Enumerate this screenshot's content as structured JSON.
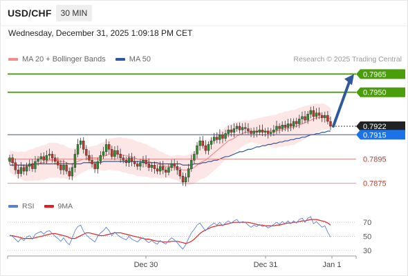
{
  "header": {
    "symbol": "USD/CHF",
    "timeframe": "30 MIN"
  },
  "datetime": "Wednesday, December 31, 2025 1:09:18 PM CET",
  "legend": [
    {
      "label": "MA 20 + Bollinger Bands",
      "color": "#f28b8b"
    },
    {
      "label": "MA 50",
      "color": "#2e5a9c"
    }
  ],
  "credit": "Research © 2025 Trading Central",
  "rsi_legend": [
    {
      "label": "RSI",
      "color": "#5b7fd6"
    },
    {
      "label": "9MA",
      "color": "#e02020"
    }
  ],
  "colors": {
    "up": "#2e8b2e",
    "down": "#c0392b",
    "resistance": "#4a9e0a",
    "support": "#f28b8b",
    "pivot": "#2e5a9c",
    "last": "#222222",
    "band": "#fde2e2",
    "arrow": "#2e5a9c"
  },
  "chart_data": [
    {
      "type": "candlestick",
      "x_ticks": [
        "Dec 30",
        "Dec 31",
        "Jan 1"
      ],
      "ylim": [
        0.7864,
        0.7972
      ],
      "levels": [
        {
          "value": 0.7965,
          "label": "0.7965",
          "kind": "resistance"
        },
        {
          "value": 0.795,
          "label": "0.7950",
          "kind": "resistance"
        },
        {
          "value": 0.7922,
          "label": "0.7922",
          "kind": "last"
        },
        {
          "value": 0.7915,
          "label": "0.7915",
          "kind": "pivot"
        },
        {
          "value": 0.7895,
          "label": "0.7895",
          "kind": "support"
        },
        {
          "value": 0.7875,
          "label": "0.7875",
          "kind": "support"
        }
      ],
      "candles_close": [
        0.7896,
        0.7892,
        0.7886,
        0.7883,
        0.7888,
        0.7885,
        0.7889,
        0.7891,
        0.7887,
        0.7893,
        0.7895,
        0.7897,
        0.7894,
        0.7898,
        0.7899,
        0.7896,
        0.7893,
        0.789,
        0.7886,
        0.789,
        0.7885,
        0.7881,
        0.7888,
        0.7899,
        0.7907,
        0.791,
        0.7903,
        0.7898,
        0.7894,
        0.7891,
        0.7887,
        0.7893,
        0.7898,
        0.7901,
        0.7907,
        0.7903,
        0.7897,
        0.7902,
        0.7899,
        0.7896,
        0.7894,
        0.7892,
        0.7896,
        0.7893,
        0.7891,
        0.7889,
        0.7892,
        0.7894,
        0.7891,
        0.7888,
        0.789,
        0.7887,
        0.7885,
        0.7889,
        0.7886,
        0.7884,
        0.7888,
        0.7891,
        0.7889,
        0.7886,
        0.7881,
        0.7876,
        0.788,
        0.7887,
        0.7894,
        0.7899,
        0.7906,
        0.791,
        0.7906,
        0.7902,
        0.7907,
        0.791,
        0.7913,
        0.7911,
        0.7915,
        0.7912,
        0.7916,
        0.7919,
        0.7917,
        0.792,
        0.7922,
        0.7919,
        0.7921,
        0.792,
        0.7918,
        0.7916,
        0.7918,
        0.7917,
        0.7919,
        0.7917,
        0.7918,
        0.7916,
        0.7917,
        0.7919,
        0.7922,
        0.792,
        0.7923,
        0.7921,
        0.7924,
        0.7922,
        0.7926,
        0.7924,
        0.7928,
        0.793,
        0.7927,
        0.7932,
        0.7935,
        0.793,
        0.7933,
        0.7931,
        0.7929,
        0.7931,
        0.7926,
        0.7922
      ],
      "ma20": [
        0.7893,
        0.7892,
        0.7891,
        0.789,
        0.789,
        0.7889,
        0.7889,
        0.789,
        0.789,
        0.7891,
        0.7891,
        0.7892,
        0.7892,
        0.7893,
        0.7894,
        0.7894,
        0.7894,
        0.7894,
        0.7893,
        0.7893,
        0.7892,
        0.7891,
        0.7891,
        0.7892,
        0.7893,
        0.7894,
        0.7895,
        0.7895,
        0.7896,
        0.7896,
        0.7896,
        0.7896,
        0.7897,
        0.7897,
        0.7898,
        0.7899,
        0.7899,
        0.7899,
        0.7899,
        0.7899,
        0.7898,
        0.7898,
        0.7897,
        0.7897,
        0.7896,
        0.7895,
        0.7895,
        0.7894,
        0.7894,
        0.7893,
        0.7892,
        0.7892,
        0.7891,
        0.789,
        0.789,
        0.7889,
        0.7889,
        0.7888,
        0.7888,
        0.7888,
        0.7887,
        0.7886,
        0.7886,
        0.7886,
        0.7887,
        0.7888,
        0.789,
        0.7892,
        0.7893,
        0.7894,
        0.7896,
        0.7898,
        0.79,
        0.7902,
        0.7904,
        0.7906,
        0.7908,
        0.791,
        0.7911,
        0.7912,
        0.7914,
        0.7915,
        0.7916,
        0.7917,
        0.7917,
        0.7918,
        0.7918,
        0.7918,
        0.7918,
        0.7918,
        0.7918,
        0.7918,
        0.7918,
        0.7918,
        0.7918,
        0.7919,
        0.7919,
        0.792,
        0.792,
        0.7921,
        0.7921,
        0.7922,
        0.7923,
        0.7924,
        0.7925,
        0.7926,
        0.7927,
        0.7928,
        0.7929,
        0.7929,
        0.793,
        0.793,
        0.7929,
        0.7928
      ],
      "bb_width": 0.0009,
      "ma50": [
        0.789,
        0.789,
        0.789,
        0.789,
        0.789,
        0.789,
        0.789,
        0.789,
        0.7891,
        0.7891,
        0.7891,
        0.7891,
        0.7891,
        0.7891,
        0.7891,
        0.7891,
        0.7891,
        0.7891,
        0.7891,
        0.7891,
        0.7891,
        0.7891,
        0.7891,
        0.7891,
        0.7891,
        0.7891,
        0.7892,
        0.7892,
        0.7892,
        0.7892,
        0.7892,
        0.7892,
        0.7892,
        0.7893,
        0.7893,
        0.7893,
        0.7893,
        0.7893,
        0.7893,
        0.7893,
        0.7893,
        0.7893,
        0.7893,
        0.7893,
        0.7893,
        0.7893,
        0.7893,
        0.7892,
        0.7892,
        0.7892,
        0.7892,
        0.7892,
        0.7892,
        0.7891,
        0.7891,
        0.7891,
        0.7891,
        0.7891,
        0.7891,
        0.7891,
        0.7891,
        0.789,
        0.789,
        0.789,
        0.789,
        0.7891,
        0.7891,
        0.7891,
        0.7892,
        0.7892,
        0.7893,
        0.7893,
        0.7894,
        0.7894,
        0.7895,
        0.7896,
        0.7897,
        0.7897,
        0.7898,
        0.7899,
        0.79,
        0.7901,
        0.7901,
        0.7902,
        0.7903,
        0.7903,
        0.7904,
        0.7905,
        0.7905,
        0.7906,
        0.7906,
        0.7907,
        0.7907,
        0.7908,
        0.7908,
        0.7909,
        0.7909,
        0.791,
        0.791,
        0.7911,
        0.7911,
        0.7912,
        0.7912,
        0.7913,
        0.7913,
        0.7914,
        0.7915,
        0.7915,
        0.7916,
        0.7916,
        0.7917,
        0.7917,
        0.7918,
        0.7918
      ],
      "forecast_arrow": {
        "from": 0.7922,
        "to": 0.7965
      }
    },
    {
      "type": "line",
      "ylim": [
        25,
        80
      ],
      "y_ticks": [
        70,
        50,
        30
      ],
      "rsi": [
        52,
        50,
        46,
        42,
        47,
        44,
        49,
        51,
        46,
        53,
        55,
        57,
        53,
        57,
        58,
        54,
        50,
        47,
        43,
        48,
        42,
        38,
        47,
        58,
        64,
        66,
        57,
        52,
        48,
        45,
        42,
        50,
        55,
        58,
        63,
        58,
        51,
        56,
        52,
        49,
        47,
        45,
        50,
        46,
        44,
        42,
        46,
        48,
        44,
        41,
        44,
        41,
        39,
        44,
        41,
        39,
        44,
        48,
        45,
        41,
        36,
        32,
        38,
        47,
        55,
        60,
        66,
        69,
        63,
        58,
        63,
        66,
        69,
        66,
        70,
        65,
        69,
        72,
        69,
        72,
        74,
        69,
        71,
        70,
        66,
        63,
        66,
        64,
        67,
        64,
        65,
        62,
        64,
        67,
        70,
        67,
        71,
        68,
        72,
        68,
        72,
        69,
        74,
        76,
        70,
        76,
        78,
        68,
        71,
        67,
        63,
        65,
        56,
        49
      ],
      "ma9": [
        51,
        51,
        50,
        49,
        48,
        47,
        47,
        47,
        47,
        48,
        49,
        50,
        51,
        52,
        53,
        54,
        54,
        53,
        52,
        51,
        50,
        48,
        47,
        47,
        49,
        51,
        53,
        55,
        55,
        54,
        53,
        52,
        51,
        51,
        52,
        53,
        54,
        55,
        55,
        55,
        54,
        53,
        52,
        51,
        50,
        49,
        48,
        47,
        46,
        46,
        45,
        44,
        43,
        43,
        42,
        42,
        42,
        43,
        43,
        43,
        42,
        41,
        40,
        41,
        43,
        46,
        50,
        54,
        57,
        59,
        61,
        63,
        64,
        65,
        66,
        66,
        67,
        68,
        69,
        70,
        70,
        70,
        70,
        70,
        70,
        69,
        68,
        67,
        66,
        66,
        65,
        65,
        65,
        65,
        66,
        66,
        67,
        68,
        69,
        69,
        70,
        70,
        71,
        72,
        72,
        73,
        74,
        74,
        74,
        73,
        72,
        71,
        69,
        66
      ]
    }
  ]
}
